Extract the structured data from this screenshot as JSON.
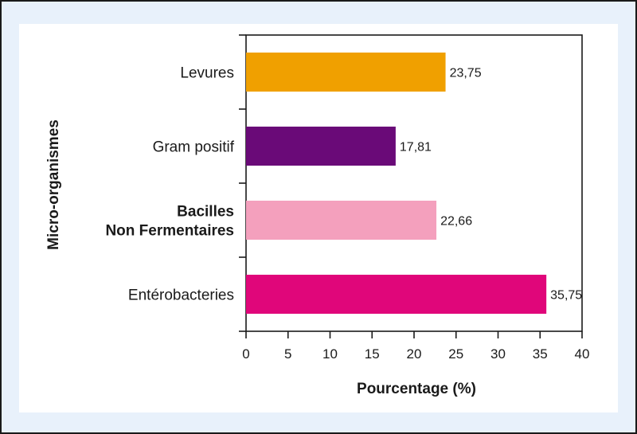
{
  "chart_data": {
    "type": "bar",
    "orientation": "horizontal",
    "title": "",
    "xlabel": "Pourcentage (%)",
    "ylabel": "Micro-organismes",
    "xlim": [
      0,
      40
    ],
    "xticks": [
      "0",
      "5",
      "10",
      "15",
      "20",
      "25",
      "30",
      "35",
      "40"
    ],
    "grid": false,
    "categories": [
      {
        "lines": [
          "Levures"
        ],
        "bold": false
      },
      {
        "lines": [
          "Gram positif"
        ],
        "bold": false
      },
      {
        "lines": [
          "Bacilles",
          "Non Fermentaires"
        ],
        "bold": true
      },
      {
        "lines": [
          "Entérobacteries"
        ],
        "bold": false
      }
    ],
    "values": [
      23.75,
      17.81,
      22.66,
      35.75
    ],
    "value_labels": [
      "23,75",
      "17,81",
      "22,66",
      "35,75"
    ],
    "colors": [
      "#f0a000",
      "#6a0a78",
      "#f4a0bd",
      "#e0067a"
    ]
  }
}
